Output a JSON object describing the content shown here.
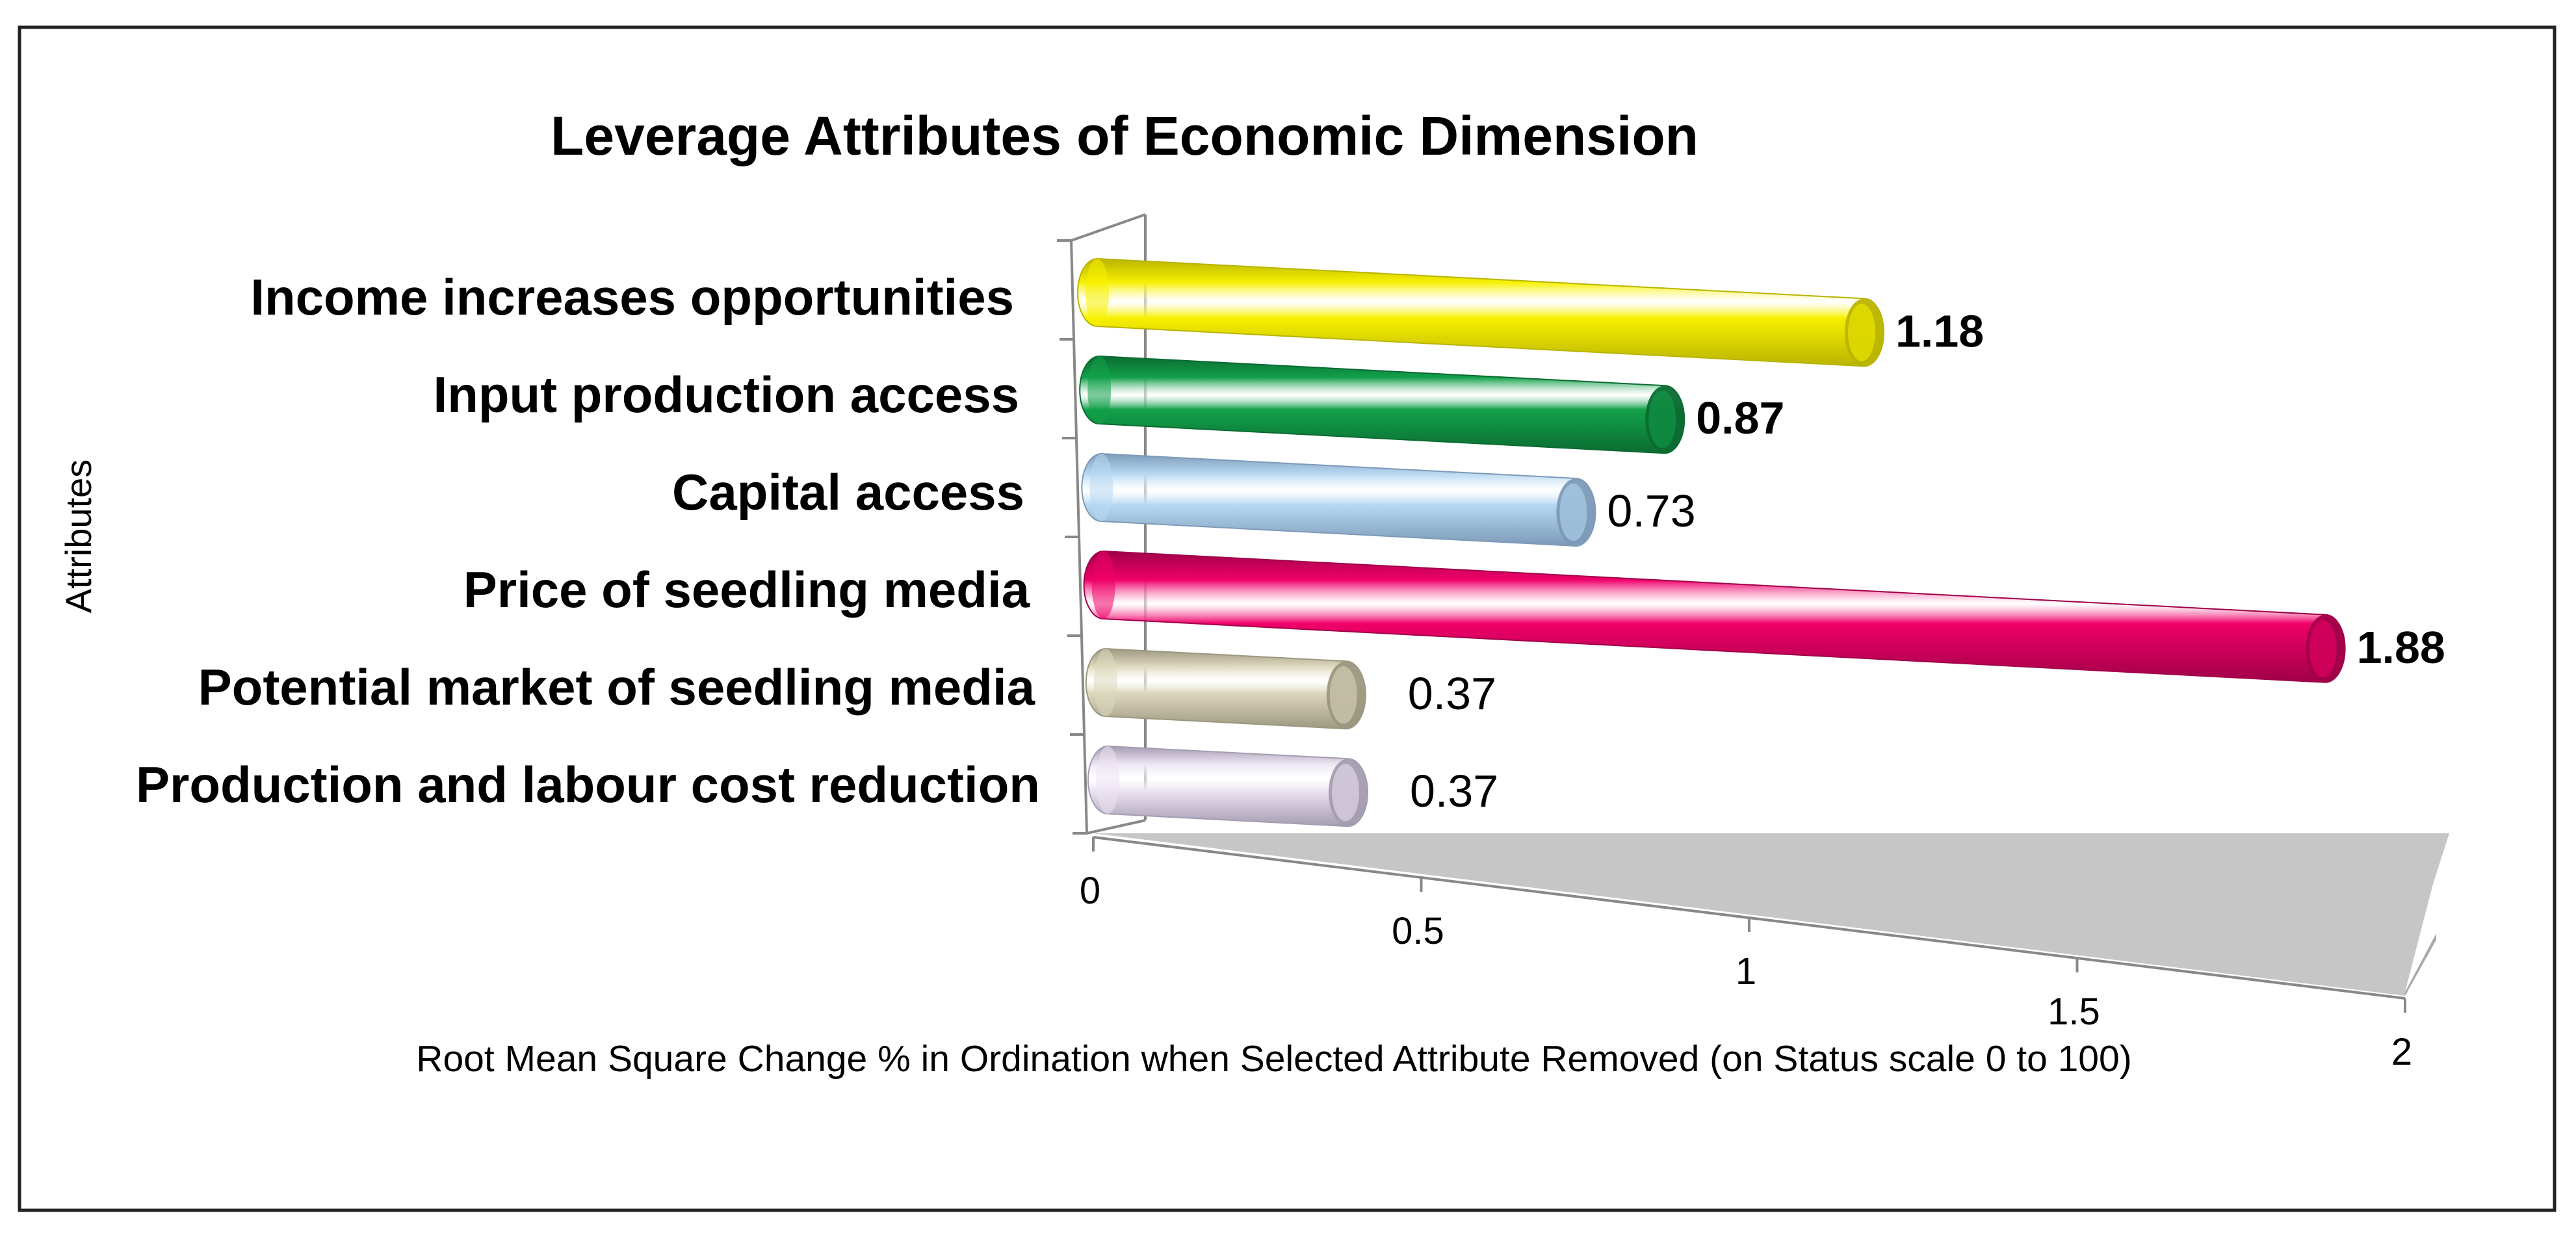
{
  "chart_data": {
    "type": "bar",
    "orientation": "horizontal",
    "style": "3d-cylinder",
    "title": "Leverage Attributes of Economic Dimension",
    "xlabel": "Root Mean Square Change % in Ordination when Selected Attribute Removed (on Status scale 0 to 100)",
    "ylabel": "Attributes",
    "xlim": [
      0,
      2
    ],
    "xticks": [
      "0",
      "0.5",
      "1",
      "1.5",
      "2"
    ],
    "xtick_values": [
      0,
      0.5,
      1,
      1.5,
      2
    ],
    "grid": false,
    "legend": "none",
    "categories": [
      "Income increases opportunities",
      "Input production access",
      "Capital access",
      "Price of seedling media",
      "Potential market of seedling media",
      "Production and labour cost reduction"
    ],
    "values": [
      1.18,
      0.87,
      0.73,
      1.88,
      0.37,
      0.37
    ],
    "value_labels": [
      "1.18",
      "0.87",
      "0.73",
      "1.88",
      "0.37",
      "0.37"
    ],
    "value_label_bold": [
      true,
      true,
      false,
      true,
      false,
      false
    ],
    "bar_colors": [
      "#f7f000",
      "#12a14a",
      "#b8d8f2",
      "#f0006a",
      "#ddd8bd",
      "#ece4f2"
    ],
    "bar_edge_colors": [
      "#b9b400",
      "#0b6b31",
      "#7c9ab8",
      "#a00048",
      "#9c9780",
      "#a49cb0"
    ]
  }
}
